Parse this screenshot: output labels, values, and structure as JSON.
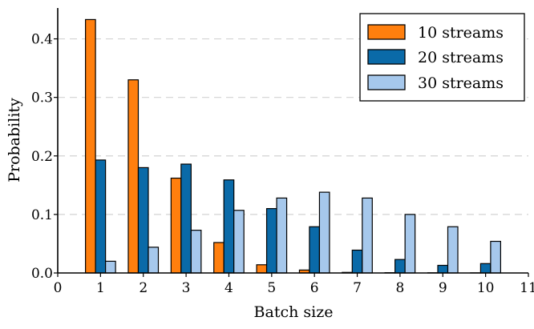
{
  "chart_data": {
    "type": "bar",
    "xlabel": "Batch size",
    "ylabel": "Probability",
    "xlim": [
      0,
      11
    ],
    "ylim": [
      0,
      0.45
    ],
    "x_ticks": [
      0,
      1,
      2,
      3,
      4,
      5,
      6,
      7,
      8,
      9,
      10,
      11
    ],
    "y_ticks": [
      0.0,
      0.1,
      0.2,
      0.3,
      0.4
    ],
    "y_tick_labels": [
      "0.0",
      "0.1",
      "0.2",
      "0.3",
      "0.4"
    ],
    "grid": "horizontal dashed",
    "legend_position": "top-right",
    "categories": [
      1,
      2,
      3,
      4,
      5,
      6,
      7,
      8,
      9,
      10
    ],
    "series": [
      {
        "name": "10 streams",
        "color": "#ff7f0e",
        "values": [
          0.433,
          0.33,
          0.162,
          0.052,
          0.014,
          0.005,
          0.001,
          0.0005,
          0.0003,
          0.0002
        ]
      },
      {
        "name": "20 streams",
        "color": "#0a6aa8",
        "values": [
          0.193,
          0.18,
          0.186,
          0.159,
          0.11,
          0.079,
          0.039,
          0.023,
          0.013,
          0.016
        ]
      },
      {
        "name": "30 streams",
        "color": "#a6c8ec",
        "values": [
          0.02,
          0.044,
          0.073,
          0.107,
          0.128,
          0.138,
          0.128,
          0.1,
          0.079,
          0.054
        ]
      }
    ]
  }
}
